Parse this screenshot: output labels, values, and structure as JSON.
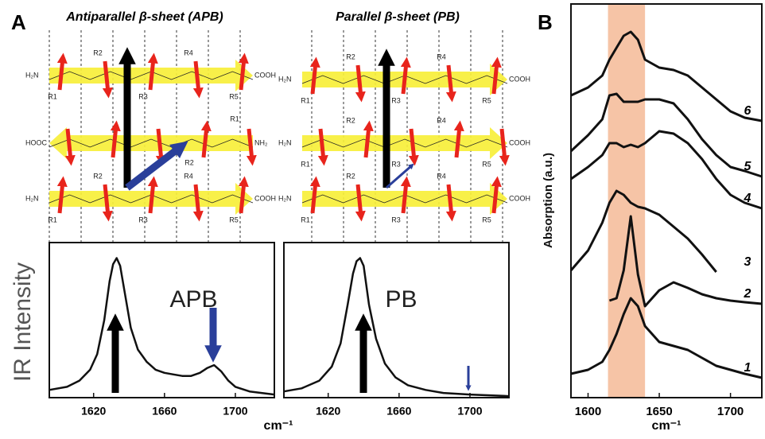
{
  "panel_labels": [
    "A",
    "B"
  ],
  "diagrams": [
    {
      "title": "Antiparallel β-sheet (APB)",
      "strands": [
        {
          "left": "H₂N",
          "right": "COOH",
          "r": [
            "R1",
            "R2",
            "R3",
            "R4",
            "R5"
          ]
        },
        {
          "left": "HOOC",
          "right": "NH₂",
          "r": [
            "R1",
            "R2"
          ]
        },
        {
          "left": "H₂N",
          "right": "COOH",
          "r": [
            "R1",
            "R2",
            "R3",
            "R4",
            "R5"
          ]
        }
      ]
    },
    {
      "title": "Parallel β-sheet (PB)",
      "strands": [
        {
          "left": "H₂N",
          "right": "COOH",
          "r": [
            "R1",
            "R2",
            "R3",
            "R4",
            "R5"
          ]
        },
        {
          "left": "H₂N",
          "right": "COOH",
          "r": [
            "R1",
            "R2",
            "R3",
            "R4",
            "R5"
          ]
        },
        {
          "left": "H₂N",
          "right": "COOH",
          "r": [
            "R1",
            "R2",
            "R3",
            "R4",
            "R5"
          ]
        }
      ]
    }
  ],
  "chart_data": [
    {
      "type": "line",
      "y_label": "IR Intensity",
      "x_label": "cm⁻¹",
      "xlim": [
        1595,
        1722
      ],
      "ylim": [
        0,
        1
      ],
      "xticks": [
        1620,
        1660,
        1700
      ],
      "x": [
        1595,
        1605,
        1612,
        1618,
        1622,
        1626,
        1629,
        1631,
        1633,
        1635,
        1638,
        1641,
        1645,
        1650,
        1655,
        1660,
        1665,
        1670,
        1675,
        1680,
        1684,
        1688,
        1692,
        1696,
        1700,
        1708,
        1722
      ],
      "series": [
        {
          "name": "APB",
          "color": "#111111",
          "values": [
            0.05,
            0.07,
            0.11,
            0.18,
            0.28,
            0.5,
            0.75,
            0.86,
            0.9,
            0.85,
            0.65,
            0.45,
            0.31,
            0.23,
            0.18,
            0.16,
            0.15,
            0.14,
            0.14,
            0.16,
            0.19,
            0.21,
            0.17,
            0.11,
            0.07,
            0.04,
            0.02
          ]
        }
      ]
    },
    {
      "type": "line",
      "xlim": [
        1595,
        1722
      ],
      "ylim": [
        0,
        1
      ],
      "xticks": [
        1620,
        1660,
        1700
      ],
      "x": [
        1595,
        1605,
        1615,
        1622,
        1627,
        1631,
        1634,
        1636,
        1638,
        1640,
        1643,
        1647,
        1652,
        1658,
        1665,
        1675,
        1685,
        1700,
        1722
      ],
      "series": [
        {
          "name": "PB",
          "color": "#111111",
          "values": [
            0.04,
            0.06,
            0.11,
            0.2,
            0.35,
            0.6,
            0.8,
            0.88,
            0.9,
            0.85,
            0.6,
            0.38,
            0.22,
            0.13,
            0.08,
            0.05,
            0.03,
            0.02,
            0.01
          ]
        }
      ]
    },
    {
      "type": "line",
      "y_label": "Absorption (a.u.)",
      "x_label": "cm⁻¹",
      "xlim": [
        1588,
        1722
      ],
      "ylim": [
        0,
        495
      ],
      "xticks": [
        1600,
        1650,
        1700
      ],
      "highlight": [
        1614,
        1640
      ],
      "highlight_color": "#f6c4a6",
      "x": [
        1588,
        1600,
        1610,
        1615,
        1620,
        1625,
        1630,
        1635,
        1640,
        1650,
        1660,
        1670,
        1680,
        1690,
        1700,
        1710,
        1722
      ],
      "series": [
        {
          "name": "1",
          "color": "#111111",
          "values": [
            30,
            35,
            45,
            60,
            80,
            105,
            125,
            115,
            90,
            70,
            65,
            60,
            50,
            40,
            35,
            30,
            25
          ]
        },
        {
          "name": "2",
          "color": "#111111",
          "values": [
            null,
            null,
            null,
            122,
            125,
            160,
            228,
            155,
            115,
            135,
            145,
            138,
            130,
            125,
            122,
            120,
            118
          ]
        },
        {
          "name": "3",
          "color": "#111111",
          "values": [
            160,
            185,
            220,
            245,
            260,
            255,
            245,
            240,
            238,
            230,
            215,
            200,
            180,
            158,
            null,
            null,
            null
          ]
        },
        {
          "name": "4",
          "color": "#111111",
          "values": [
            275,
            290,
            305,
            320,
            320,
            315,
            318,
            315,
            320,
            335,
            332,
            320,
            300,
            275,
            255,
            245,
            238
          ]
        },
        {
          "name": "5",
          "color": "#111111",
          "values": [
            310,
            330,
            350,
            380,
            382,
            372,
            372,
            372,
            375,
            375,
            370,
            350,
            325,
            305,
            290,
            285,
            278
          ]
        },
        {
          "name": "6",
          "color": "#111111",
          "values": [
            380,
            390,
            405,
            425,
            440,
            455,
            460,
            450,
            425,
            415,
            412,
            405,
            390,
            375,
            360,
            352,
            348
          ]
        }
      ]
    }
  ]
}
